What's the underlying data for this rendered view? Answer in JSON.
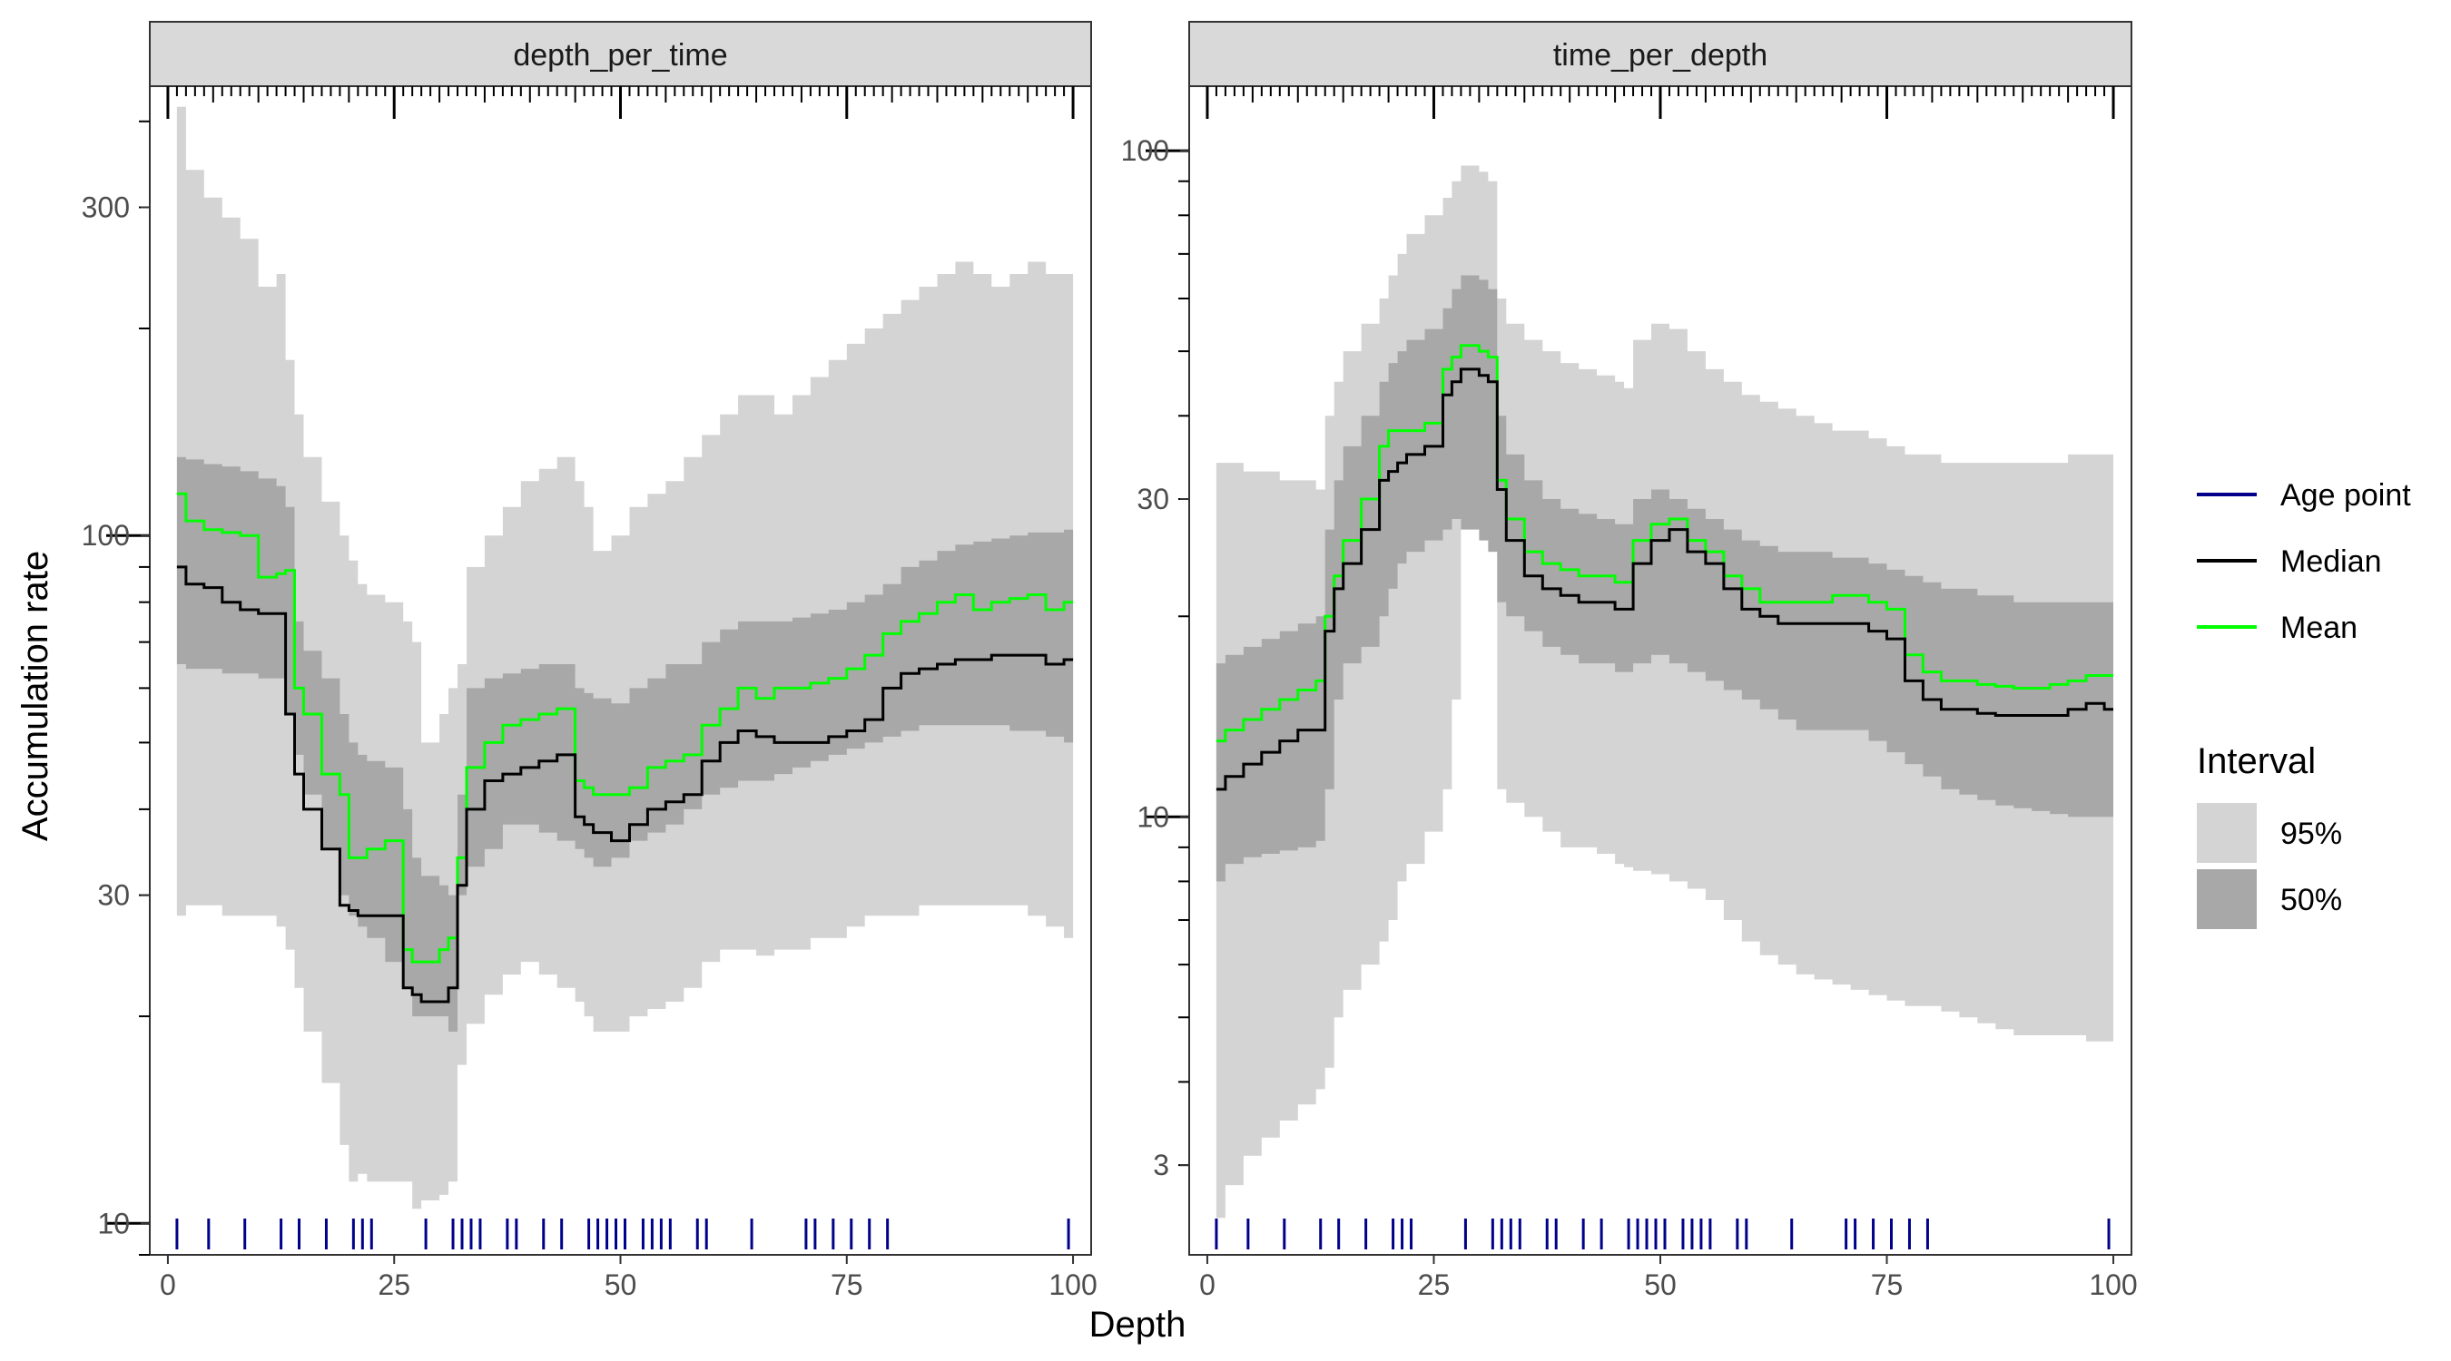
{
  "chart_data": {
    "type": "area",
    "xlabel": "Depth",
    "ylabel": "Accumulation rate",
    "y_scale": "log",
    "grid": false,
    "legend_position": "right",
    "colors": {
      "band95": "#d4d4d4",
      "band50": "#a8a8a8",
      "median": "#000000",
      "mean": "#00ff00",
      "age_point": "#00008b",
      "strip_bg": "#d9d9d9"
    },
    "legend": {
      "lines": [
        {
          "label": "Age point",
          "color": "#00008b"
        },
        {
          "label": "Median",
          "color": "#000000"
        },
        {
          "label": "Mean",
          "color": "#00ff00"
        }
      ],
      "interval_title": "Interval",
      "intervals": [
        {
          "label": "95%",
          "color": "#d4d4d4"
        },
        {
          "label": "50%",
          "color": "#a8a8a8"
        }
      ]
    },
    "age_points": [
      1,
      4.5,
      8.5,
      12.5,
      14.5,
      17.5,
      20.5,
      21.5,
      22.5,
      28.5,
      31.5,
      32.5,
      33.5,
      34.5,
      37.5,
      38.5,
      41.5,
      43.5,
      46.5,
      47.5,
      48.5,
      49.5,
      50.5,
      52.5,
      53.5,
      54.5,
      55.5,
      58.5,
      59.5,
      64.5,
      70.5,
      71.5,
      73.5,
      75.5,
      77.5,
      79.5,
      99.5
    ],
    "panels": [
      {
        "strip": "depth_per_time",
        "xlim": [
          -2,
          102
        ],
        "xticks": [
          0,
          25,
          50,
          75,
          100
        ],
        "ylim": [
          9.0,
          450
        ],
        "yticks": [
          10,
          30,
          100,
          300
        ],
        "x": [
          1,
          2,
          4,
          6,
          8,
          10,
          12,
          13,
          14,
          15,
          17,
          19,
          20,
          21,
          22,
          24,
          26,
          27,
          28,
          30,
          31,
          32,
          33,
          35,
          37,
          39,
          41,
          43,
          45,
          46,
          47,
          49,
          51,
          53,
          55,
          57,
          59,
          61,
          63,
          65,
          67,
          69,
          71,
          73,
          75,
          77,
          79,
          81,
          83,
          85,
          87,
          89,
          91,
          93,
          95,
          97,
          99,
          100
        ],
        "q025": [
          28,
          29,
          29,
          28,
          28,
          28,
          27,
          25,
          22,
          19,
          16,
          13,
          11.5,
          11.8,
          11.5,
          11.5,
          11.5,
          10.5,
          10.8,
          11,
          11.5,
          17,
          19.5,
          21.5,
          23,
          24,
          23,
          22,
          21,
          20,
          19,
          19,
          20,
          20.5,
          21,
          22,
          24,
          25,
          25,
          24.5,
          25,
          25,
          26,
          26,
          27,
          28,
          28,
          28,
          29,
          29,
          29,
          29,
          29,
          29,
          28,
          27,
          26,
          26
        ],
        "q25": [
          65,
          64,
          64,
          63,
          63,
          62,
          62,
          55,
          48,
          42,
          35,
          30,
          28,
          27,
          26,
          24,
          22,
          20,
          20,
          20,
          19,
          30,
          33,
          35,
          38,
          38,
          37,
          36,
          35,
          34,
          33,
          34,
          36,
          37,
          38,
          40,
          42,
          43,
          44,
          44,
          45,
          46,
          47,
          48,
          49,
          50,
          51,
          52,
          53,
          53,
          53,
          53,
          53,
          52,
          52,
          51,
          50,
          50
        ],
        "median": [
          90,
          85,
          84,
          80,
          78,
          77,
          77,
          55,
          45,
          40,
          35,
          29,
          28.5,
          28,
          28,
          28,
          22,
          21.5,
          21,
          21,
          22,
          31,
          40,
          44,
          45,
          46,
          47,
          48,
          39,
          38,
          37,
          36,
          38,
          40,
          41,
          42,
          47,
          50,
          52,
          51,
          50,
          50,
          50,
          51,
          52,
          54,
          60,
          63,
          64,
          65,
          66,
          66,
          67,
          67,
          67,
          65,
          66,
          66
        ],
        "mean": [
          115,
          105,
          102,
          101,
          100,
          87,
          88,
          89,
          60,
          55,
          45,
          42,
          34,
          34,
          35,
          36,
          25,
          24,
          24,
          25,
          26,
          34,
          46,
          50,
          53,
          54,
          55,
          56,
          44,
          43,
          42,
          42,
          43,
          46,
          47,
          48,
          53,
          56,
          60,
          58,
          60,
          60,
          61,
          62,
          64,
          67,
          72,
          75,
          77,
          80,
          82,
          78,
          80,
          81,
          82,
          78,
          80,
          82
        ],
        "q75": [
          130,
          129,
          127,
          126,
          124,
          121,
          118,
          110,
          75,
          68,
          62,
          55,
          50,
          48,
          47,
          46,
          40,
          34,
          32,
          31,
          30,
          42,
          60,
          62,
          63,
          64,
          65,
          65,
          60,
          59,
          58,
          57,
          60,
          62,
          65,
          65,
          70,
          73,
          75,
          75,
          75,
          76,
          77,
          78,
          80,
          82,
          85,
          90,
          92,
          95,
          97,
          98,
          99,
          100,
          101,
          101,
          102,
          102
        ],
        "q975": [
          420,
          340,
          310,
          290,
          270,
          230,
          240,
          180,
          150,
          130,
          112,
          100,
          92,
          85,
          82,
          80,
          75,
          70,
          50,
          55,
          60,
          65,
          90,
          100,
          110,
          120,
          125,
          130,
          120,
          110,
          95,
          100,
          110,
          115,
          120,
          130,
          140,
          150,
          160,
          160,
          150,
          160,
          170,
          180,
          190,
          200,
          210,
          220,
          230,
          240,
          250,
          240,
          230,
          240,
          250,
          240,
          240,
          240
        ]
      },
      {
        "strip": "time_per_depth",
        "xlim": [
          -2,
          102
        ],
        "xticks": [
          0,
          25,
          50,
          75,
          100
        ],
        "ylim": [
          2.2,
          125
        ],
        "yticks": [
          3,
          10,
          30,
          100
        ],
        "x": [
          1,
          2,
          4,
          6,
          8,
          10,
          12,
          13,
          14,
          15,
          17,
          19,
          20,
          21,
          22,
          24,
          26,
          27,
          28,
          30,
          31,
          32,
          33,
          35,
          37,
          39,
          41,
          43,
          45,
          46,
          47,
          49,
          51,
          53,
          55,
          57,
          59,
          61,
          63,
          65,
          67,
          69,
          71,
          73,
          75,
          77,
          79,
          81,
          83,
          85,
          87,
          89,
          91,
          93,
          95,
          97,
          99,
          100
        ],
        "q025": [
          2.5,
          2.8,
          3.1,
          3.3,
          3.5,
          3.7,
          3.9,
          4.2,
          5.0,
          5.5,
          6.0,
          6.5,
          7.0,
          8.0,
          8.5,
          9.5,
          11,
          15,
          30,
          28,
          25,
          11,
          10.5,
          10,
          9.5,
          9.0,
          9.0,
          8.8,
          8.5,
          8.4,
          8.3,
          8.2,
          8.0,
          7.8,
          7.5,
          7.0,
          6.5,
          6.2,
          6.0,
          5.8,
          5.7,
          5.6,
          5.5,
          5.4,
          5.3,
          5.2,
          5.2,
          5.1,
          5.0,
          4.9,
          4.8,
          4.7,
          4.7,
          4.7,
          4.7,
          4.6,
          4.6,
          4.6
        ],
        "q25": [
          8.0,
          8.5,
          8.7,
          8.8,
          8.9,
          9.0,
          9.2,
          11,
          15,
          17,
          18,
          20,
          22,
          24,
          25,
          26,
          27,
          28,
          27,
          26,
          25,
          21,
          20,
          19,
          18,
          17.5,
          17,
          17,
          16.5,
          16.5,
          17,
          17.5,
          17,
          16.5,
          16,
          15.5,
          15,
          14.5,
          14,
          13.5,
          13.5,
          13.5,
          13.5,
          13,
          12.5,
          12,
          11.5,
          11,
          10.8,
          10.6,
          10.4,
          10.3,
          10.2,
          10.1,
          10.0,
          10.0,
          10.0,
          10.0
        ],
        "median": [
          11,
          11.5,
          12,
          12.5,
          13,
          13.5,
          13.5,
          19,
          22,
          24,
          27,
          32,
          33,
          34,
          35,
          36,
          43,
          45,
          47,
          46,
          45,
          31,
          26,
          23,
          22,
          21.5,
          21,
          21,
          20.5,
          20.5,
          24,
          26,
          27,
          25,
          24,
          22,
          20.5,
          20,
          19.5,
          19.5,
          19.5,
          19.5,
          19.5,
          19,
          18.5,
          16,
          15,
          14.5,
          14.5,
          14.3,
          14.2,
          14.2,
          14.2,
          14.2,
          14.5,
          14.8,
          14.5,
          14.5
        ],
        "mean": [
          13,
          13.5,
          14,
          14.5,
          15,
          15.5,
          16,
          20,
          23,
          26,
          30,
          36,
          38,
          38,
          38,
          39,
          47,
          49,
          51,
          50,
          49,
          32,
          28,
          25,
          24,
          23.5,
          23,
          23,
          22.5,
          22.5,
          26,
          27.5,
          28,
          26,
          25,
          23,
          22,
          21,
          21,
          21,
          21,
          21.5,
          21.5,
          21,
          20.5,
          17.5,
          16.5,
          16,
          16,
          15.8,
          15.7,
          15.6,
          15.6,
          15.8,
          16,
          16.3,
          16.3,
          16.3
        ],
        "q75": [
          17,
          17.5,
          18,
          18.5,
          19,
          19.5,
          20,
          27,
          32,
          36,
          40,
          45,
          48,
          50,
          52,
          54,
          58,
          62,
          65,
          64,
          62,
          40,
          35,
          32,
          30,
          29,
          28.5,
          28,
          27.5,
          27.5,
          30,
          31,
          30,
          29,
          28,
          27,
          26,
          25.5,
          25,
          25,
          25,
          24.5,
          24.5,
          24,
          23.5,
          23,
          22.5,
          22,
          22,
          21.5,
          21.5,
          21,
          21,
          21,
          21,
          21,
          21,
          21
        ],
        "q975": [
          34,
          34,
          33,
          33,
          32,
          32,
          31,
          40,
          45,
          50,
          55,
          60,
          65,
          70,
          75,
          80,
          85,
          90,
          95,
          93,
          90,
          60,
          55,
          52,
          50,
          48,
          47,
          46,
          45,
          44,
          52,
          55,
          54,
          50,
          47,
          45,
          43,
          42,
          41,
          40,
          39,
          38,
          38,
          37,
          36,
          35,
          35,
          34,
          34,
          34,
          34,
          34,
          34,
          34,
          35,
          35,
          35,
          35
        ]
      }
    ]
  }
}
